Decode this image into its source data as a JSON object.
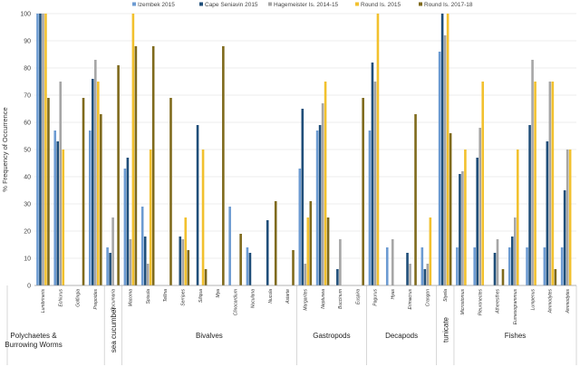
{
  "chart_data": {
    "type": "bar",
    "ylabel": "% Frequency of Occurrence",
    "ylim": [
      0,
      100
    ],
    "yticks": [
      0,
      10,
      20,
      30,
      40,
      50,
      60,
      70,
      80,
      90,
      100
    ],
    "grid": true,
    "legend_position": "top",
    "series": [
      {
        "name": "Izembek 2015",
        "color": "#6c9bd2"
      },
      {
        "name": "Cape Seniavin 2015",
        "color": "#1f4e79"
      },
      {
        "name": "Hagemeister Is. 2014-15",
        "color": "#a6a6a6"
      },
      {
        "name": "Round Is. 2015",
        "color": "#f2c12e"
      },
      {
        "name": "Round Is. 2017-18",
        "color": "#7f6a1c"
      }
    ],
    "categories": [
      "Lumbrineris",
      "Echiurus",
      "Golfingia",
      "Prepoides",
      "Cucumaria",
      "Macoma",
      "Spisula",
      "Tellina",
      "Serripes",
      "Siliqua",
      "Mya",
      "Clinocardium",
      "Nuculana",
      "Nucula",
      "Astarte",
      "Margarites",
      "Neptunea",
      "Buccinum",
      "Euspira",
      "Pagurus",
      "Hyas",
      "Erimacrus",
      "Crangon",
      "Styela",
      "Microstomus",
      "Pleuronectes",
      "Atheresthes",
      "Eumesogrammus",
      "Lumpenus",
      "Ammodytes",
      "Ammodytes"
    ],
    "values": [
      [
        100,
        100,
        100,
        100,
        69
      ],
      [
        57,
        53,
        75,
        50,
        0
      ],
      [
        0,
        0,
        0,
        0,
        69
      ],
      [
        57,
        76,
        83,
        75,
        63
      ],
      [
        14,
        12,
        25,
        0,
        81
      ],
      [
        43,
        47,
        17,
        100,
        88
      ],
      [
        29,
        18,
        8,
        50,
        88
      ],
      [
        0,
        0,
        0,
        0,
        69
      ],
      [
        0,
        18,
        17,
        25,
        13
      ],
      [
        0,
        59,
        0,
        50,
        6
      ],
      [
        0,
        0,
        0,
        0,
        88
      ],
      [
        29,
        0,
        0,
        0,
        19
      ],
      [
        14,
        12,
        0,
        0,
        0
      ],
      [
        0,
        24,
        0,
        0,
        31
      ],
      [
        0,
        0,
        0,
        0,
        13
      ],
      [
        43,
        65,
        8,
        25,
        31
      ],
      [
        57,
        59,
        67,
        75,
        25
      ],
      [
        0,
        6,
        17,
        0,
        0
      ],
      [
        0,
        0,
        0,
        0,
        69
      ],
      [
        57,
        82,
        75,
        100,
        0
      ],
      [
        14,
        0,
        17,
        0,
        0
      ],
      [
        0,
        12,
        8,
        0,
        63
      ],
      [
        14,
        6,
        8,
        25,
        0
      ],
      [
        86,
        100,
        92,
        100,
        56
      ],
      [
        14,
        41,
        42,
        50,
        0
      ],
      [
        14,
        47,
        58,
        75,
        0
      ],
      [
        0,
        12,
        17,
        0,
        6
      ],
      [
        14,
        18,
        25,
        50,
        0
      ],
      [
        14,
        59,
        83,
        75,
        0
      ],
      [
        14,
        53,
        75,
        75,
        6
      ],
      [
        14,
        35,
        50,
        50,
        0
      ]
    ],
    "groups": [
      {
        "label": "Polychaetes & Burrowing Worms",
        "start": 0,
        "end": 3
      },
      {
        "label": "sea cucumber",
        "start": 4,
        "end": 4,
        "vertical": true
      },
      {
        "label": "Bivalves",
        "start": 5,
        "end": 14
      },
      {
        "label": "Gastropods",
        "start": 15,
        "end": 18
      },
      {
        "label": "Decapods",
        "start": 19,
        "end": 22
      },
      {
        "label": "tunicate",
        "start": 23,
        "end": 23,
        "vertical": true
      },
      {
        "label": "Fishes",
        "start": 24,
        "end": 30
      }
    ]
  }
}
